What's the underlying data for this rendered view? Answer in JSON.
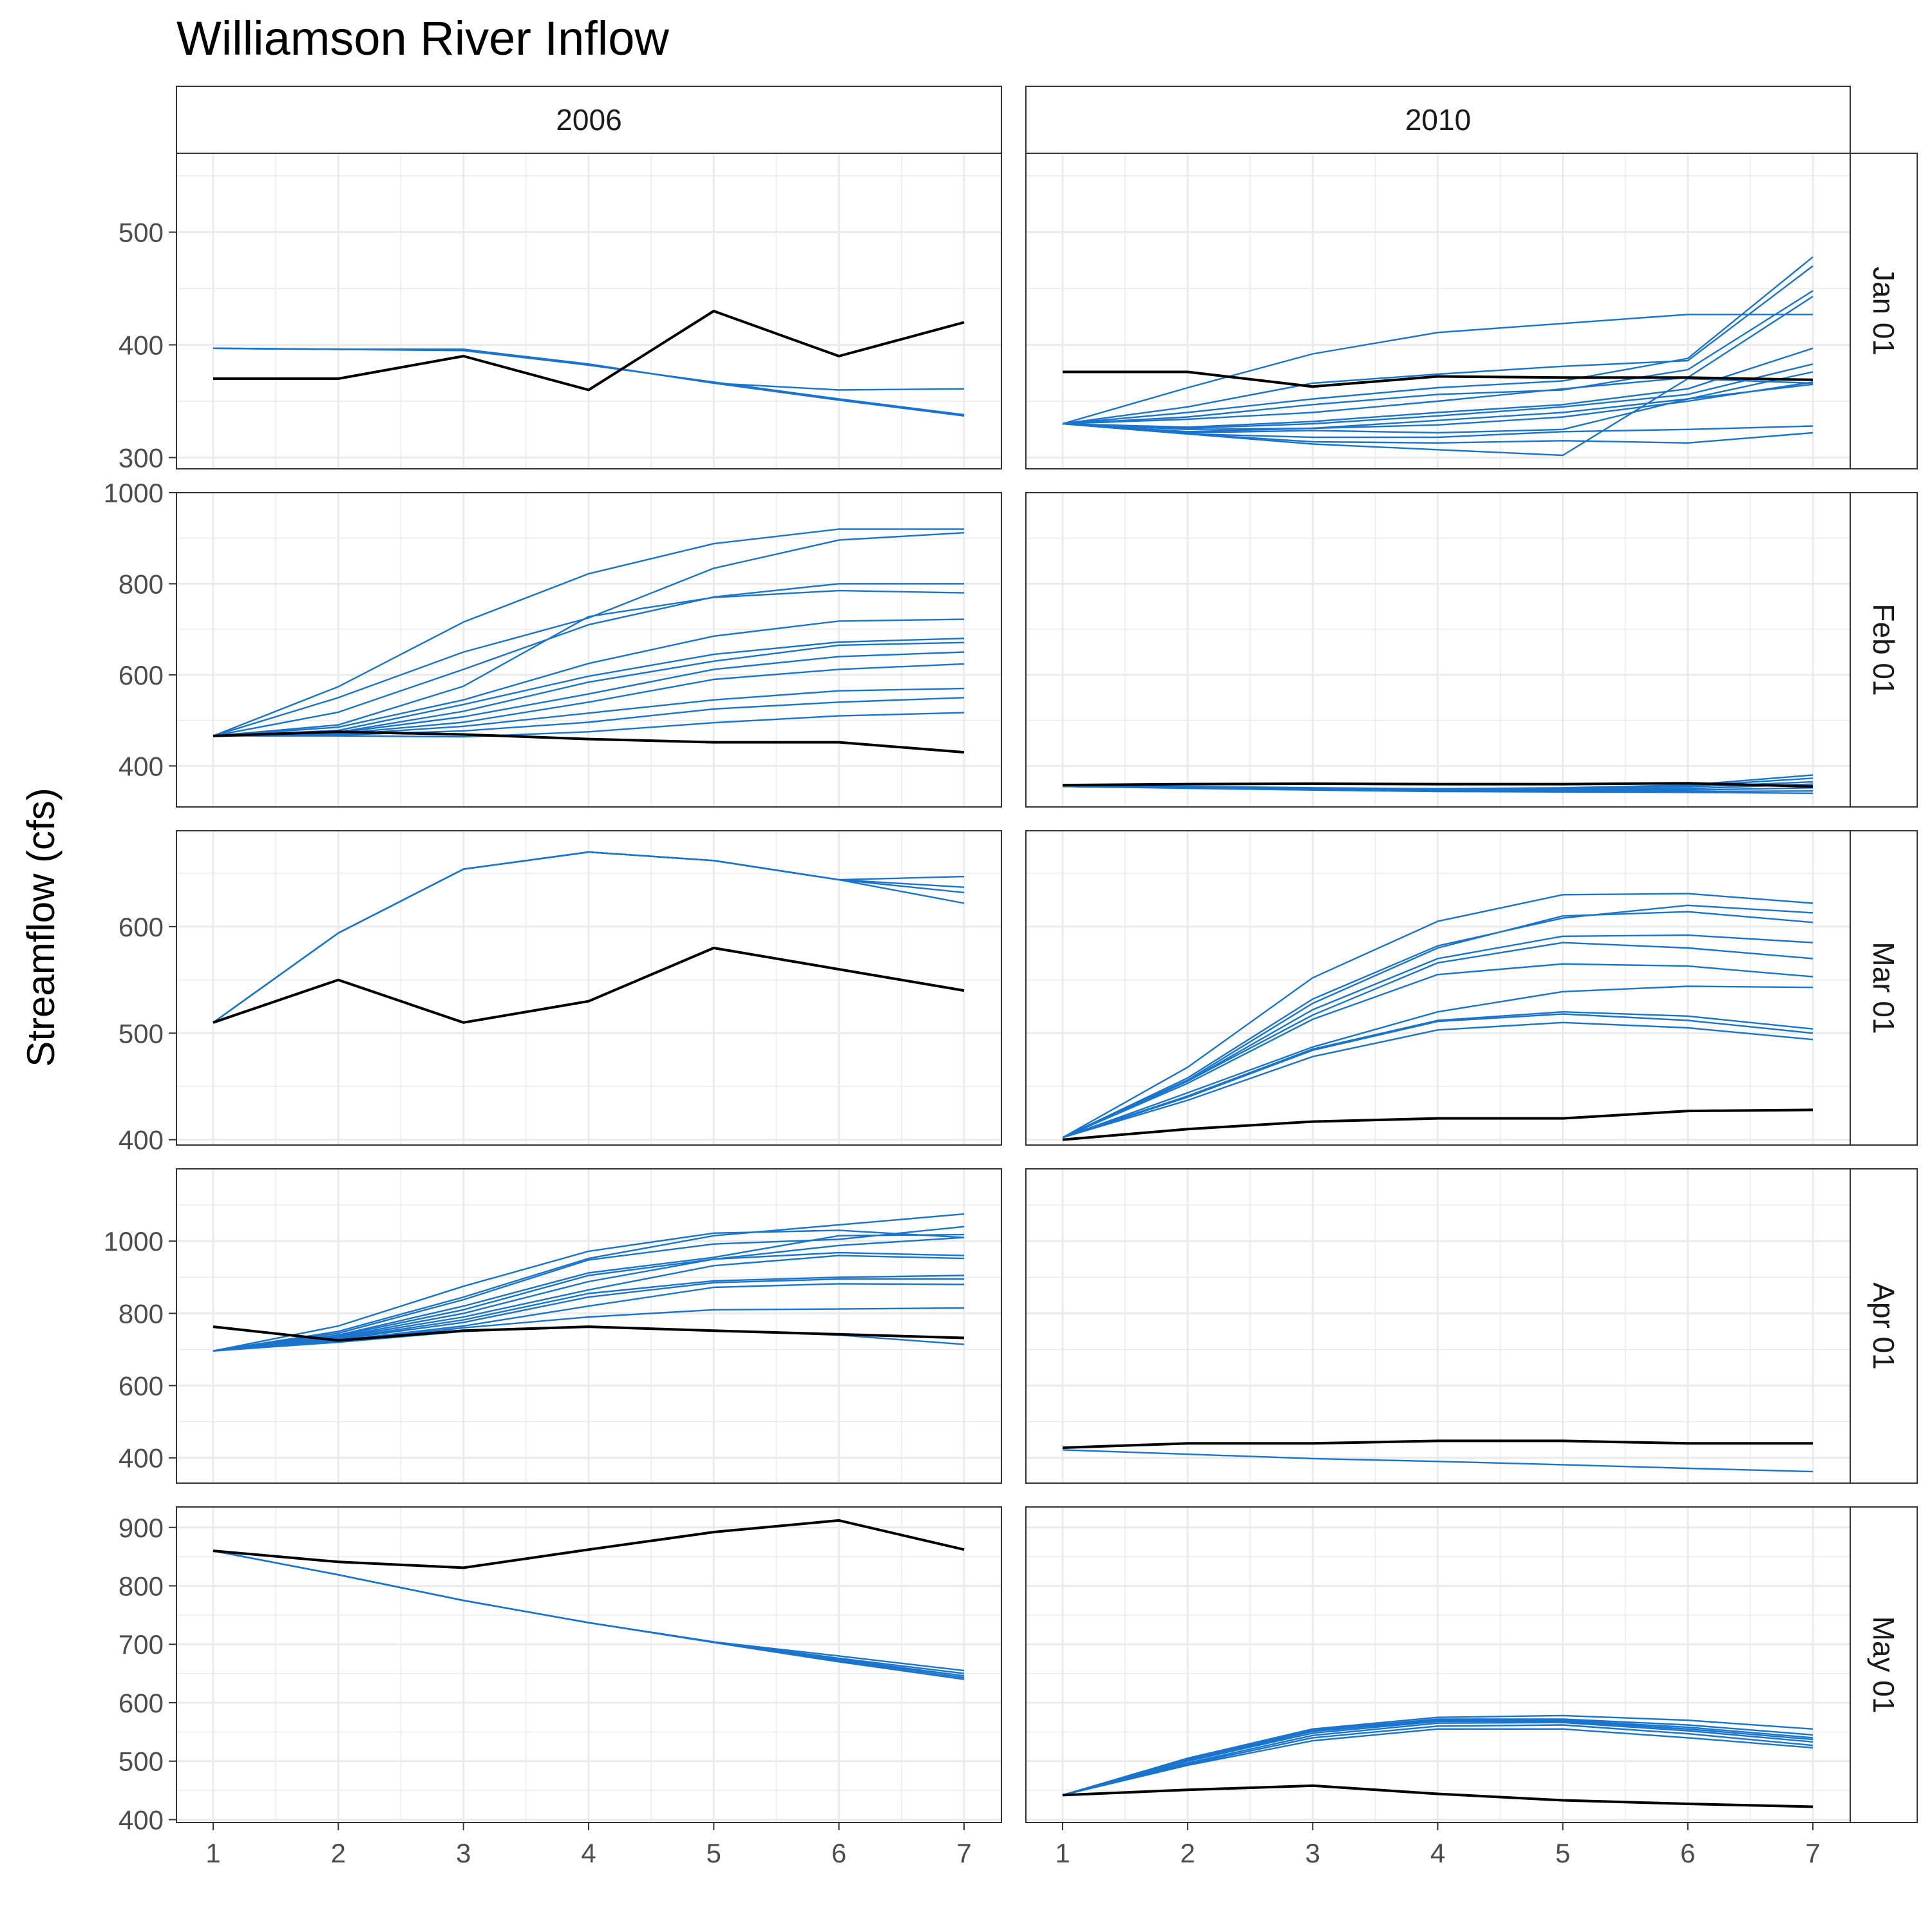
{
  "chart_data": {
    "type": "line",
    "title": "Williamson River Inflow",
    "ylabel": "Streamflow (cfs)",
    "xlabel": "",
    "x": [
      1,
      2,
      3,
      4,
      5,
      6,
      7
    ],
    "x_tick_labels": [
      "1",
      "2",
      "3",
      "4",
      "5",
      "6",
      "7"
    ],
    "grid": true,
    "colors": {
      "observed": "#000000",
      "forecast": "#1874CD",
      "grid": "#EBEBEB",
      "border": "#333333",
      "strip_bg": "#FFFFFF"
    },
    "columns": [
      "2006",
      "2010"
    ],
    "rows": [
      {
        "label": "Jan 01",
        "ylim": [
          290,
          570
        ],
        "yticks": [
          300,
          400,
          500
        ],
        "ytick_labels": [
          "300",
          "400",
          "500"
        ],
        "panels": [
          {
            "observed": [
              370,
              370,
              390,
              360,
              430,
              390,
              420
            ],
            "forecasts": [
              [
                397,
                396,
                396,
                383,
                366,
                360,
                361
              ],
              [
                397,
                396,
                396,
                383,
                366,
                351,
                337
              ],
              [
                397,
                396,
                395,
                382,
                367,
                352,
                338
              ]
            ]
          },
          {
            "observed": [
              376,
              376,
              363,
              372,
              371,
              371,
              369
            ],
            "forecasts": [
              [
                330,
                362,
                392,
                411,
                419,
                427,
                427
              ],
              [
                330,
                345,
                366,
                374,
                381,
                386,
                470
              ],
              [
                330,
                340,
                352,
                362,
                368,
                388,
                478
              ],
              [
                330,
                336,
                347,
                356,
                360,
                378,
                448
              ],
              [
                330,
                334,
                340,
                350,
                361,
                371,
                443
              ],
              [
                330,
                327,
                332,
                340,
                347,
                361,
                397
              ],
              [
                330,
                326,
                330,
                337,
                345,
                356,
                383
              ],
              [
                330,
                325,
                326,
                333,
                340,
                352,
                376
              ],
              [
                330,
                323,
                326,
                329,
                336,
                350,
                367
              ],
              [
                330,
                322,
                324,
                322,
                325,
                352,
                365
              ],
              [
                330,
                321,
                318,
                318,
                323,
                325,
                328
              ],
              [
                330,
                321,
                314,
                313,
                315,
                313,
                322
              ],
              [
                330,
                321,
                312,
                307,
                302,
                370,
                366
              ]
            ]
          }
        ]
      },
      {
        "label": "Feb 01",
        "ylim": [
          310,
          1000
        ],
        "yticks": [
          400,
          600,
          800,
          1000
        ],
        "ytick_labels": [
          "400",
          "600",
          "800",
          "1000"
        ],
        "panels": [
          {
            "observed": [
              466,
              475,
              469,
              459,
              452,
              452,
              430
            ],
            "forecasts": [
              [
                466,
                574,
                716,
                822,
                888,
                920,
                920
              ],
              [
                466,
                550,
                650,
                725,
                834,
                896,
                912
              ],
              [
                466,
                518,
                612,
                710,
                771,
                800,
                800
              ],
              [
                466,
                490,
                575,
                728,
                770,
                785,
                780
              ],
              [
                466,
                485,
                545,
                625,
                685,
                718,
                722
              ],
              [
                466,
                478,
                535,
                597,
                645,
                672,
                680
              ],
              [
                466,
                474,
                520,
                584,
                630,
                665,
                671
              ],
              [
                466,
                473,
                508,
                558,
                612,
                640,
                650
              ],
              [
                466,
                471,
                496,
                540,
                590,
                612,
                624
              ],
              [
                466,
                469,
                487,
                516,
                545,
                565,
                570
              ],
              [
                466,
                468,
                477,
                496,
                525,
                540,
                550
              ],
              [
                466,
                466,
                464,
                475,
                495,
                510,
                517
              ]
            ]
          },
          {
            "observed": [
              358,
              360,
              361,
              360,
              360,
              362,
              355
            ],
            "forecasts": [
              [
                355,
                355,
                352,
                350,
                352,
                358,
                380
              ],
              [
                355,
                354,
                351,
                349,
                350,
                356,
                373
              ],
              [
                355,
                353,
                350,
                348,
                349,
                354,
                365
              ],
              [
                355,
                353,
                349,
                347,
                348,
                350,
                360
              ],
              [
                355,
                352,
                349,
                346,
                346,
                347,
                352
              ],
              [
                355,
                352,
                348,
                345,
                345,
                344,
                345
              ],
              [
                355,
                351,
                347,
                344,
                343,
                342,
                340
              ]
            ]
          }
        ]
      },
      {
        "label": "Mar 01",
        "ylim": [
          395,
          690
        ],
        "yticks": [
          400,
          500,
          600
        ],
        "ytick_labels": [
          "400",
          "500",
          "600"
        ],
        "panels": [
          {
            "observed": [
              510,
              550,
              510,
              530,
              580,
              560,
              540
            ],
            "forecasts": [
              [
                510,
                594,
                654,
                670,
                662,
                644,
                647
              ],
              [
                510,
                594,
                654,
                670,
                662,
                644,
                637
              ],
              [
                510,
                594,
                654,
                670,
                662,
                644,
                632
              ],
              [
                510,
                594,
                654,
                670,
                662,
                644,
                622
              ]
            ]
          },
          {
            "observed": [
              400,
              410,
              417,
              420,
              420,
              427,
              428
            ],
            "forecasts": [
              [
                402,
                468,
                552,
                605,
                630,
                631,
                622
              ],
              [
                402,
                458,
                532,
                582,
                608,
                620,
                613
              ],
              [
                402,
                456,
                528,
                580,
                610,
                614,
                604
              ],
              [
                402,
                455,
                522,
                570,
                591,
                592,
                585
              ],
              [
                402,
                455,
                517,
                566,
                585,
                580,
                570
              ],
              [
                402,
                453,
                513,
                555,
                565,
                563,
                553
              ],
              [
                402,
                444,
                487,
                520,
                539,
                544,
                543
              ],
              [
                402,
                441,
                485,
                512,
                520,
                516,
                504
              ],
              [
                402,
                440,
                484,
                511,
                518,
                512,
                500
              ],
              [
                402,
                437,
                478,
                503,
                510,
                505,
                494
              ]
            ]
          }
        ]
      },
      {
        "label": "Apr 01",
        "ylim": [
          330,
          1200
        ],
        "yticks": [
          400,
          600,
          800,
          1000
        ],
        "ytick_labels": [
          "400",
          "600",
          "800",
          "1000"
        ],
        "panels": [
          {
            "observed": [
              763,
              725,
              752,
              763,
              752,
              742,
              732
            ],
            "forecasts": [
              [
                696,
                765,
                875,
                972,
                1022,
                1030,
                1010
              ],
              [
                696,
                750,
                845,
                952,
                1015,
                1045,
                1075
              ],
              [
                696,
                745,
                838,
                948,
                992,
                1005,
                1040
              ],
              [
                696,
                740,
                820,
                912,
                955,
                1015,
                1018
              ],
              [
                696,
                738,
                810,
                905,
                950,
                988,
                1010
              ],
              [
                696,
                735,
                800,
                888,
                950,
                968,
                960
              ],
              [
                696,
                733,
                790,
                865,
                932,
                960,
                952
              ],
              [
                696,
                730,
                782,
                855,
                890,
                900,
                905
              ],
              [
                696,
                728,
                775,
                845,
                885,
                895,
                895
              ],
              [
                696,
                725,
                765,
                820,
                872,
                882,
                880
              ],
              [
                696,
                722,
                760,
                790,
                810,
                812,
                815
              ],
              [
                696,
                720,
                750,
                762,
                752,
                740,
                714
              ]
            ]
          },
          {
            "observed": [
              428,
              440,
              440,
              447,
              447,
              440,
              440
            ],
            "forecasts": [
              [
                422,
                410,
                398,
                390,
                381,
                371,
                362
              ]
            ]
          }
        ]
      },
      {
        "label": "May 01",
        "ylim": [
          395,
          935
        ],
        "yticks": [
          400,
          500,
          600,
          700,
          800,
          900
        ],
        "ytick_labels": [
          "400",
          "500",
          "600",
          "700",
          "800",
          "900"
        ],
        "panels": [
          {
            "observed": [
              860,
              841,
              831,
              862,
              892,
              912,
              862
            ],
            "forecasts": [
              [
                860,
                819,
                775,
                737,
                704,
                680,
                655
              ],
              [
                860,
                819,
                775,
                737,
                704,
                676,
                650
              ],
              [
                860,
                819,
                775,
                737,
                704,
                674,
                646
              ],
              [
                860,
                819,
                775,
                737,
                704,
                672,
                643
              ],
              [
                860,
                819,
                775,
                737,
                703,
                670,
                640
              ]
            ]
          },
          {
            "observed": [
              442,
              451,
              458,
              444,
              433,
              427,
              422
            ],
            "forecasts": [
              [
                442,
                505,
                555,
                575,
                578,
                570,
                555
              ],
              [
                442,
                503,
                553,
                572,
                572,
                562,
                545
              ],
              [
                442,
                501,
                551,
                570,
                570,
                558,
                540
              ],
              [
                442,
                500,
                548,
                568,
                568,
                555,
                537
              ],
              [
                442,
                497,
                544,
                565,
                566,
                552,
                533
              ],
              [
                442,
                495,
                540,
                560,
                562,
                547,
                527
              ],
              [
                442,
                493,
                535,
                555,
                555,
                540,
                523
              ]
            ]
          }
        ]
      }
    ]
  }
}
